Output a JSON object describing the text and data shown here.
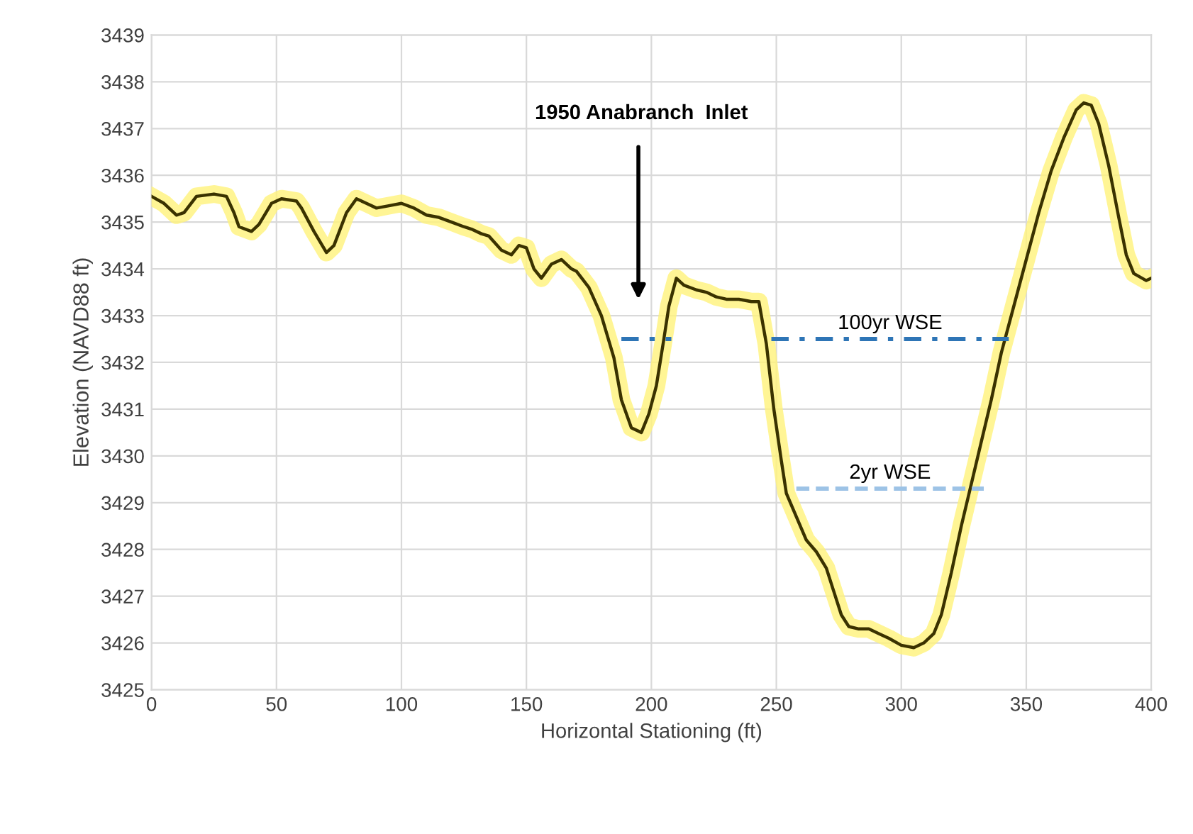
{
  "chart_data": {
    "type": "line",
    "xlabel": "Horizontal Stationing (ft)",
    "ylabel": "Elevation (NAVD88 ft)",
    "xlim": [
      0,
      400
    ],
    "xticks": [
      0,
      50,
      100,
      150,
      200,
      250,
      300,
      350,
      400
    ],
    "ylim": [
      3425,
      3439
    ],
    "yticks": [
      3425,
      3426,
      3427,
      3428,
      3429,
      3430,
      3431,
      3432,
      3433,
      3434,
      3435,
      3436,
      3437,
      3438,
      3439
    ],
    "grid": true,
    "legend": false,
    "marker": "none",
    "annotations": [
      "1950 Anabranch  Inlet"
    ],
    "series": [
      {
        "color": "#3a3200",
        "line_style": "solid",
        "x": [
          0,
          5,
          10,
          13,
          18,
          25,
          30,
          33,
          35,
          40,
          43,
          48,
          52,
          58,
          60,
          65,
          70,
          73,
          78,
          82,
          86,
          90,
          95,
          100,
          105,
          110,
          115,
          120,
          125,
          128,
          132,
          135,
          140,
          144,
          147,
          150,
          153,
          156,
          160,
          164,
          168,
          170,
          175,
          180,
          185,
          188,
          192,
          196,
          199,
          202,
          205,
          207,
          210,
          213,
          218,
          222,
          226,
          230,
          235,
          240,
          243,
          246,
          249,
          252,
          254,
          258,
          262,
          266,
          270,
          273,
          276,
          279,
          283,
          287,
          291,
          295,
          300,
          305,
          309,
          313,
          316,
          320,
          324,
          328,
          332,
          336,
          340,
          345,
          350,
          355,
          360,
          365,
          370,
          373,
          376,
          379,
          383,
          387,
          390,
          393,
          398,
          400
        ],
        "values": [
          3435.55,
          3435.4,
          3435.15,
          3435.2,
          3435.55,
          3435.6,
          3435.55,
          3435.2,
          3434.9,
          3434.8,
          3434.95,
          3435.4,
          3435.5,
          3435.45,
          3435.3,
          3434.8,
          3434.35,
          3434.5,
          3435.2,
          3435.5,
          3435.4,
          3435.3,
          3435.35,
          3435.4,
          3435.3,
          3435.15,
          3435.1,
          3435.0,
          3434.9,
          3434.85,
          3434.75,
          3434.7,
          3434.4,
          3434.3,
          3434.5,
          3434.45,
          3434.0,
          3433.8,
          3434.1,
          3434.2,
          3434.0,
          3433.95,
          3433.6,
          3433.0,
          3432.1,
          3431.2,
          3430.6,
          3430.5,
          3430.9,
          3431.5,
          3432.5,
          3433.2,
          3433.8,
          3433.65,
          3433.55,
          3433.5,
          3433.4,
          3433.35,
          3433.35,
          3433.3,
          3433.3,
          3432.4,
          3431.0,
          3429.9,
          3429.2,
          3428.7,
          3428.2,
          3427.95,
          3427.6,
          3427.1,
          3426.6,
          3426.35,
          3426.3,
          3426.3,
          3426.2,
          3426.1,
          3425.95,
          3425.9,
          3426.0,
          3426.2,
          3426.6,
          3427.5,
          3428.5,
          3429.4,
          3430.3,
          3431.2,
          3432.2,
          3433.2,
          3434.2,
          3435.2,
          3436.1,
          3436.8,
          3437.4,
          3437.55,
          3437.5,
          3437.1,
          3436.2,
          3435.1,
          3434.3,
          3433.9,
          3433.75,
          3433.8
        ]
      },
      {
        "name": "100yr WSE",
        "color": "#2e75b6",
        "line_style": "dashdot",
        "x": [
          188,
          208,
          228,
          248,
          343
        ],
        "values": [
          3432.5,
          3432.5,
          null,
          3432.5,
          3432.5
        ]
      },
      {
        "name": "2yr WSE",
        "color": "#9dc3e6",
        "line_style": "dashed",
        "x": [
          258,
          333
        ],
        "values": [
          3429.3,
          3429.3
        ]
      }
    ]
  }
}
